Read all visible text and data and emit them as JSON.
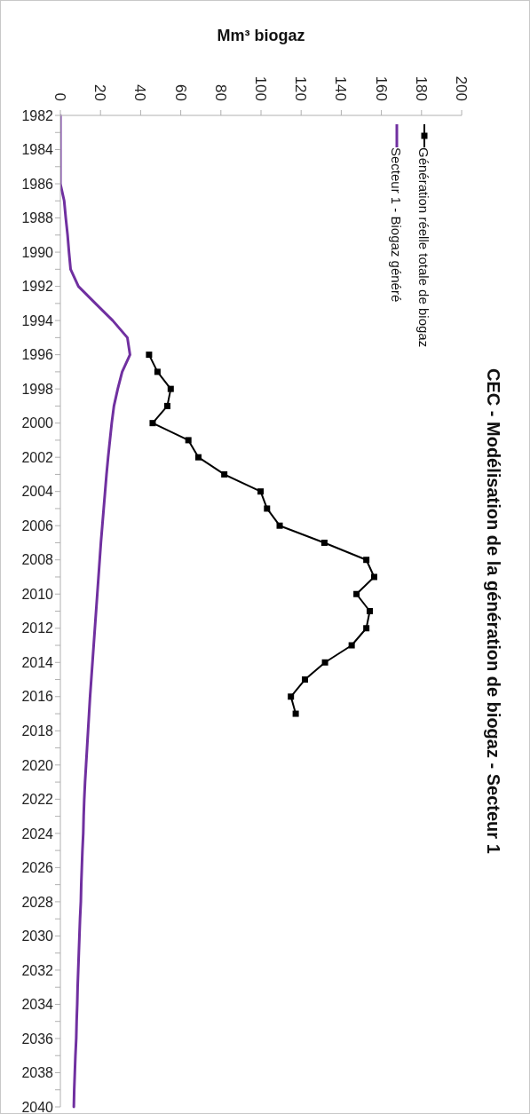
{
  "chart_data": {
    "type": "line",
    "orientation": "horizontal",
    "title": "CEC - Modélisation de la génération de biogaz - Secteur 1",
    "xlabel": "Mm³ biogaz",
    "categories": [
      "1982",
      null,
      "1984",
      null,
      "1986",
      null,
      "1988",
      null,
      "1990",
      null,
      "1992",
      null,
      "1994",
      null,
      "1996",
      null,
      "1998",
      null,
      "2000",
      null,
      "2002",
      null,
      "2004",
      null,
      "2006",
      null,
      "2008",
      null,
      "2010",
      null,
      "2012",
      null,
      "2014",
      null,
      "2016",
      null,
      "2018",
      null,
      "2020",
      null,
      "2022",
      null,
      "2024",
      null,
      "2026",
      null,
      "2028",
      null,
      "2030",
      null,
      "2032",
      null,
      "2034",
      null,
      "2036",
      null,
      "2038",
      null,
      "2040"
    ],
    "series": [
      {
        "name": "Génération réelle totale de biogaz",
        "color": "#000000",
        "marker": "square",
        "values": [
          null,
          null,
          null,
          null,
          null,
          null,
          null,
          null,
          null,
          null,
          null,
          null,
          null,
          null,
          44.2,
          48.4,
          55.0,
          53.3,
          46.0,
          63.8,
          68.8,
          81.7,
          99.8,
          103.0,
          109.3,
          131.6,
          152.5,
          156.4,
          147.6,
          154.2,
          152.5,
          145.2,
          131.9,
          121.9,
          114.9,
          117.3,
          null,
          null,
          null,
          null,
          null,
          null,
          null,
          null,
          null,
          null,
          null,
          null,
          null,
          null,
          null,
          null,
          null,
          null,
          null,
          null,
          null,
          null,
          null
        ]
      },
      {
        "name": "Secteur 1 - Biogaz généré",
        "color": "#7030a0",
        "marker": "none",
        "values": [
          0,
          0,
          0,
          0,
          0,
          1.9,
          2.7,
          3.6,
          4.3,
          5.1,
          9.0,
          17.5,
          26.1,
          33.4,
          34.7,
          30.8,
          28.6,
          26.7,
          25.6,
          24.7,
          23.8,
          23.0,
          22.3,
          21.6,
          20.9,
          20.2,
          19.6,
          19.0,
          18.4,
          17.8,
          17.2,
          16.6,
          16.0,
          15.4,
          14.8,
          14.3,
          13.8,
          13.3,
          12.8,
          12.3,
          11.9,
          11.6,
          11.4,
          11.0,
          10.7,
          10.4,
          10.2,
          9.8,
          9.5,
          9.2,
          8.9,
          8.6,
          8.4,
          8.1,
          7.9,
          7.5,
          7.2,
          6.9,
          6.7
        ]
      }
    ],
    "xlim": [
      0,
      200
    ],
    "xticks": [
      0,
      20,
      40,
      60,
      80,
      100,
      120,
      140,
      160,
      180,
      200
    ],
    "grid": false,
    "legend": "top right",
    "line_style": "solid"
  }
}
